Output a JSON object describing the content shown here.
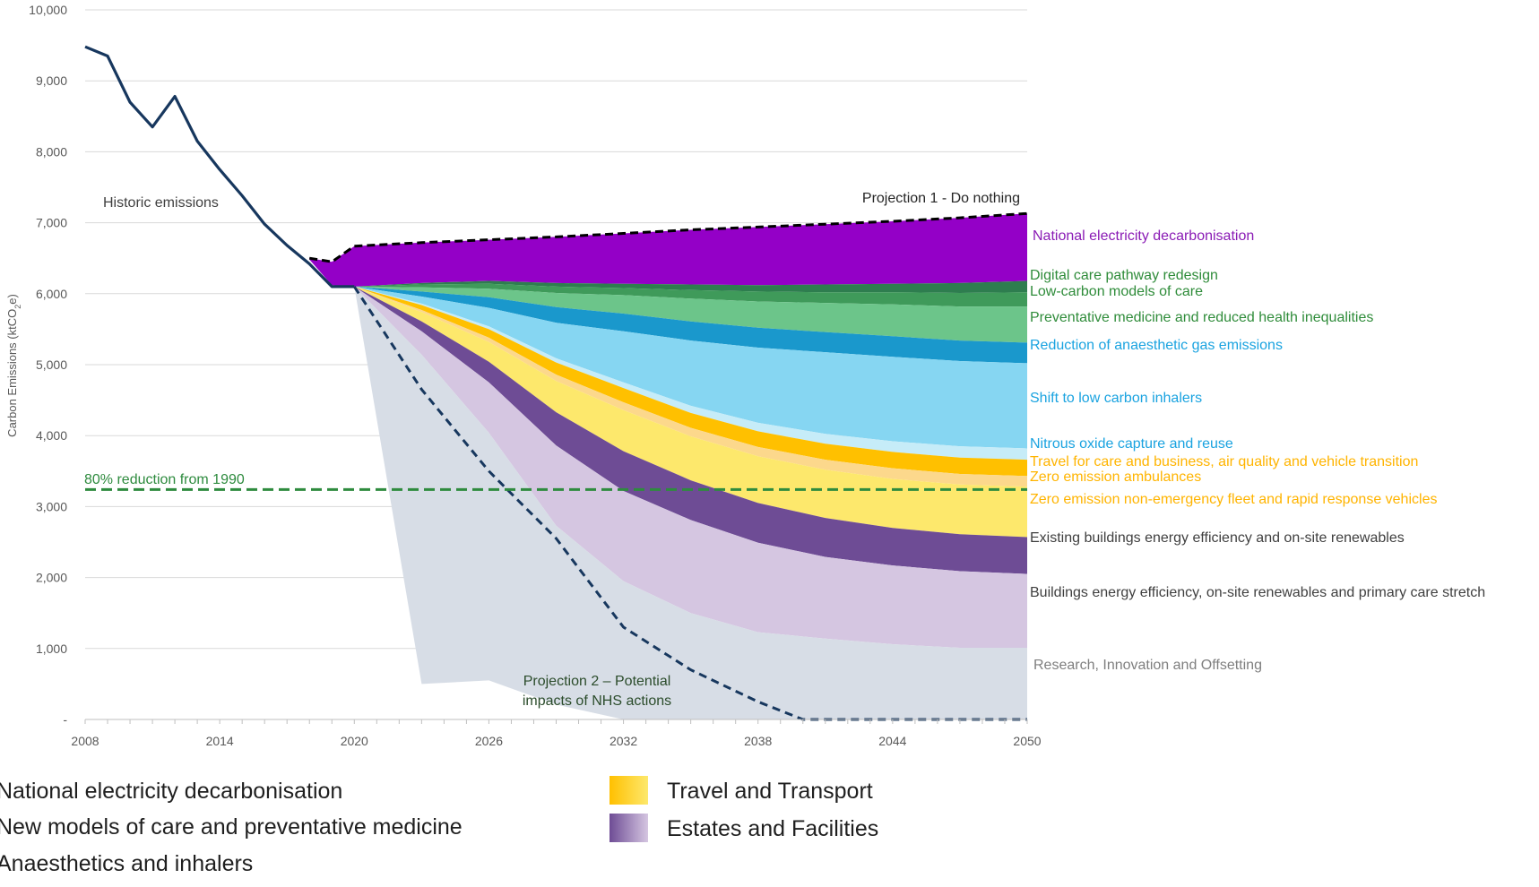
{
  "chart_data": {
    "type": "area",
    "ylabel": "Carbon Emissions (ktCO2e)",
    "ylabel_main": "Carbon Emissions (ktCO",
    "ylabel_sub": "2",
    "ylabel_end": "e)",
    "xlim": [
      2008,
      2050
    ],
    "ylim": [
      0,
      10000
    ],
    "x_ticks": [
      "2008",
      "2014",
      "2020",
      "2026",
      "2032",
      "2038",
      "2044",
      "2050"
    ],
    "x_tick_values": [
      2008,
      2014,
      2020,
      2026,
      2032,
      2038,
      2044,
      2050
    ],
    "y_ticks": [
      "-",
      "1,000",
      "2,000",
      "3,000",
      "4,000",
      "5,000",
      "6,000",
      "7,000",
      "8,000",
      "9,000",
      "10,000"
    ],
    "y_tick_values": [
      0,
      1000,
      2000,
      3000,
      4000,
      5000,
      6000,
      7000,
      8000,
      9000,
      10000
    ],
    "grid": true,
    "historic": {
      "label": "Historic emissions",
      "x": [
        2008,
        2009,
        2010,
        2011,
        2012,
        2013,
        2014,
        2015,
        2016,
        2017,
        2018,
        2019,
        2020
      ],
      "y": [
        9480,
        9350,
        8700,
        8350,
        8780,
        8150,
        7750,
        7380,
        6980,
        6680,
        6420,
        6100,
        6100
      ]
    },
    "reference_line": {
      "label": "80% reduction from 1990",
      "y": 3240,
      "color": "#2e8b3e"
    },
    "projection_do_nothing": {
      "label": "Projection 1 - Do nothing",
      "x": [
        2018,
        2019,
        2020,
        2023,
        2026,
        2029,
        2032,
        2035,
        2038,
        2041,
        2044,
        2047,
        2050
      ],
      "y": [
        6500,
        6450,
        6670,
        6720,
        6760,
        6800,
        6850,
        6900,
        6940,
        6980,
        7020,
        7070,
        7130
      ]
    },
    "projection_nhs_actions": {
      "label": "Projection 2 – Potential\nimpacts of NHS actions",
      "label_line1": "Projection 2 – Potential",
      "label_line2": "impacts of NHS actions",
      "x": [
        2020,
        2023,
        2026,
        2029,
        2032,
        2035,
        2038,
        2040,
        2044,
        2050
      ],
      "y": [
        6100,
        4650,
        3500,
        2550,
        1300,
        700,
        250,
        0,
        0,
        0
      ]
    },
    "x": [
      2020,
      2023,
      2026,
      2029,
      2032,
      2035,
      2038,
      2041,
      2044,
      2047,
      2050
    ],
    "stack_top": [
      6100,
      6150,
      6180,
      6150,
      6140,
      6130,
      6120,
      6130,
      6140,
      6150,
      6180
    ],
    "series": [
      {
        "name": "National electricity decarbonisation",
        "color": "#9400c7",
        "text_color": "#8a1bb5",
        "values": [
          0,
          560,
          590,
          660,
          710,
          770,
          820,
          850,
          880,
          920,
          950
        ]
      },
      {
        "name": "Digital care pathway redesign",
        "color": "#2e7d4f",
        "text_color": "#2f8c3a",
        "values": [
          0,
          20,
          40,
          50,
          60,
          80,
          90,
          110,
          120,
          140,
          160
        ]
      },
      {
        "name": "Low-carbon models of care",
        "color": "#3f9a5a",
        "text_color": "#2f8c3a",
        "values": [
          0,
          40,
          70,
          90,
          100,
          120,
          140,
          150,
          170,
          190,
          200
        ]
      },
      {
        "name": "Preventative medicine and reduced health inequalities",
        "color": "#6cc58a",
        "text_color": "#2f8c3a",
        "values": [
          0,
          60,
          120,
          200,
          260,
          320,
          370,
          410,
          450,
          480,
          510
        ]
      },
      {
        "name": "Reduction of anaesthetic gas emissions",
        "color": "#1a98cc",
        "text_color": "#1aa3e0",
        "values": [
          0,
          70,
          150,
          220,
          250,
          270,
          280,
          285,
          290,
          290,
          290
        ]
      },
      {
        "name": "Shift to low carbon inhalers",
        "color": "#86d6f2",
        "text_color": "#1aa3e0",
        "values": [
          0,
          100,
          260,
          500,
          720,
          920,
          1060,
          1150,
          1190,
          1200,
          1200
        ]
      },
      {
        "name": "Nitrous oxide capture and reuse",
        "color": "#c6ecf8",
        "text_color": "#1aa3e0",
        "values": [
          0,
          20,
          40,
          60,
          80,
          100,
          120,
          140,
          150,
          160,
          160
        ]
      },
      {
        "name": "Travel for care and business, air quality and vehicle transition",
        "color": "#ffc000",
        "text_color": "#ffb400",
        "values": [
          0,
          70,
          120,
          170,
          200,
          210,
          220,
          225,
          230,
          230,
          230
        ]
      },
      {
        "name": "Zero emission ambulances",
        "color": "#fcd88c",
        "text_color": "#ffb400",
        "values": [
          0,
          30,
          60,
          90,
          110,
          120,
          130,
          140,
          150,
          150,
          150
        ]
      },
      {
        "name": "Zero emission non-emergency fleet and rapid response vehicles",
        "color": "#fde86c",
        "text_color": "#ffb400",
        "values": [
          0,
          130,
          280,
          440,
          580,
          620,
          660,
          680,
          690,
          700,
          710
        ]
      },
      {
        "name": "Existing buildings energy efficiency and on-site renewables",
        "color": "#6e4c95",
        "text_color": "#3f3f3f",
        "values": [
          0,
          140,
          290,
          470,
          560,
          560,
          560,
          550,
          530,
          520,
          520
        ]
      },
      {
        "name": "Buildings energy efficiency, on-site renewables and primary care stretch",
        "color": "#d5c6e1",
        "text_color": "#3f3f3f",
        "values": [
          0,
          330,
          710,
          1130,
          1270,
          1310,
          1260,
          1150,
          1110,
          1080,
          1040
        ]
      },
      {
        "name": "Research, Innovation and Offsetting",
        "color": "#d7dde6",
        "text_color": "#7f7f7f",
        "values": [
          0,
          4640,
          3490,
          2520,
          2050,
          1750,
          1570,
          1470,
          1390,
          1320,
          1240
        ]
      }
    ],
    "legend": [
      {
        "label": "National electricity decarbonisation",
        "color": "#9400c7"
      },
      {
        "label": "New models of care and preventative medicine",
        "color": "#3f9a5a"
      },
      {
        "label": "Anaesthetics and inhalers",
        "color": "#1a98cc"
      },
      {
        "label": "Travel and Transport",
        "color": "#ffc000",
        "color2": "#fde86c"
      },
      {
        "label": "Estates and Facilities",
        "color": "#6e4c95",
        "color2": "#d5c6e1"
      }
    ]
  }
}
